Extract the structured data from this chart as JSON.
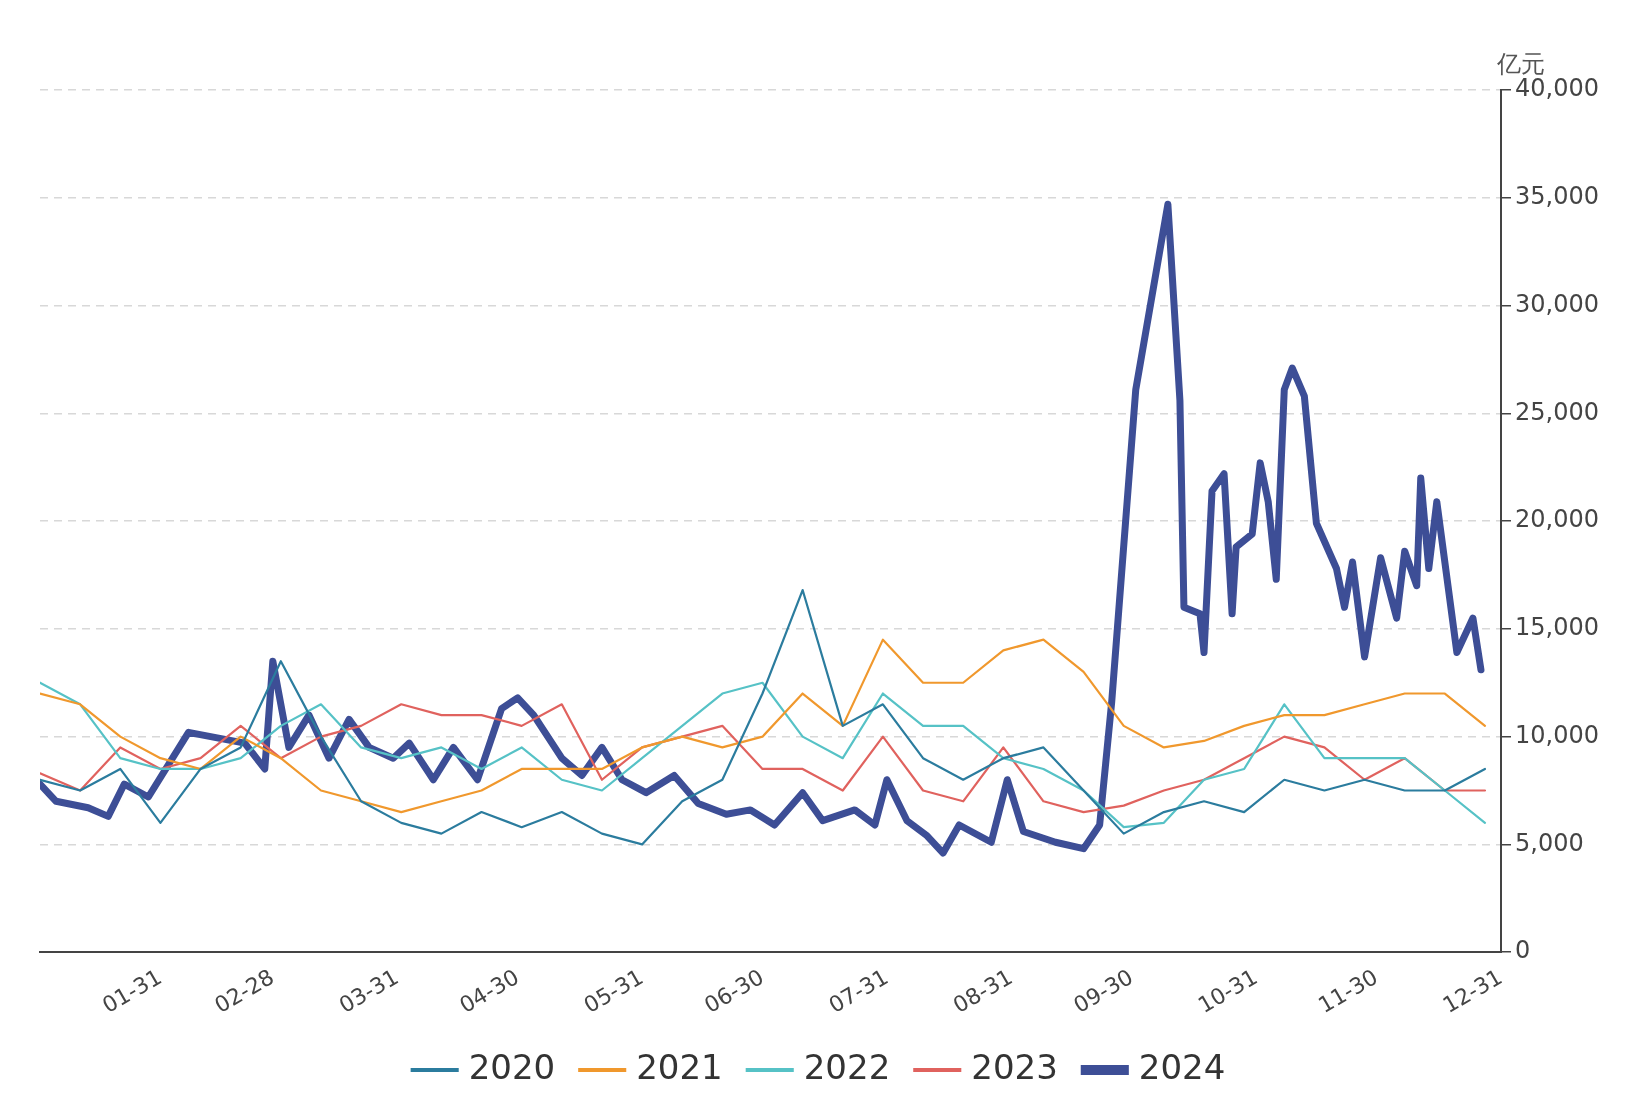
{
  "chart_data": {
    "type": "line",
    "ylabel": "亿元",
    "x": [
      "--01-01",
      "--01-11",
      "--01-21",
      "--01-31",
      "--02-10",
      "--02-20",
      "--03-02",
      "--03-12",
      "--03-22",
      "--04-01",
      "--04-11",
      "--04-21",
      "--05-01",
      "--05-11",
      "--05-21",
      "--05-31",
      "--06-10",
      "--06-20",
      "--06-30",
      "--07-10",
      "--07-20",
      "--07-30",
      "--08-09",
      "--08-19",
      "--08-29",
      "--09-08",
      "--09-18",
      "--09-28",
      "--10-08",
      "--10-18",
      "--10-28",
      "--11-07",
      "--11-17",
      "--11-27",
      "--12-07",
      "--12-17",
      "--12-27"
    ],
    "xlim": [
      "--01-01",
      "--12-31"
    ],
    "xticks": [
      {
        "value": "--01-31",
        "label": "01-31"
      },
      {
        "value": "--02-28",
        "label": "02-28"
      },
      {
        "value": "--03-31",
        "label": "03-31"
      },
      {
        "value": "--04-30",
        "label": "04-30"
      },
      {
        "value": "--05-31",
        "label": "05-31"
      },
      {
        "value": "--06-30",
        "label": "06-30"
      },
      {
        "value": "--07-31",
        "label": "07-31"
      },
      {
        "value": "--08-31",
        "label": "08-31"
      },
      {
        "value": "--09-30",
        "label": "09-30"
      },
      {
        "value": "--10-31",
        "label": "10-31"
      },
      {
        "value": "--11-30",
        "label": "11-30"
      },
      {
        "value": "--12-31",
        "label": "12-31"
      }
    ],
    "ylim": [
      0,
      40000
    ],
    "yticks": [
      0,
      {
        "value": 5000,
        "label": "5,000"
      },
      {
        "value": 10000,
        "label": "10,000"
      },
      {
        "value": 15000,
        "label": "15,000"
      },
      {
        "value": 20000,
        "label": "20,000"
      },
      {
        "value": 25000,
        "label": "25,000"
      },
      {
        "value": 30000,
        "label": "30,000"
      },
      {
        "value": 35000,
        "label": "35,000"
      },
      {
        "value": 40000,
        "label": "40,000"
      }
    ],
    "grid": "y",
    "legend": "bottom",
    "marker": "none",
    "line_style": "solid",
    "series": [
      {
        "name": "2020",
        "color": "#2b7c9e",
        "values": [
          8000,
          7500,
          8500,
          6000,
          8500,
          9500,
          13500,
          10000,
          7000,
          6000,
          5500,
          6500,
          5800,
          6500,
          5500,
          5000,
          7000,
          8000,
          12000,
          16800,
          10500,
          11500,
          9000,
          8000,
          9000,
          9500,
          7500,
          5500,
          6500,
          7000,
          6500,
          8000,
          7500,
          8000,
          7500,
          7500,
          8500
        ]
      },
      {
        "name": "2021",
        "color": "#f0982d",
        "values": [
          12000,
          11500,
          10000,
          9000,
          8500,
          10000,
          9000,
          7500,
          7000,
          6500,
          7000,
          7500,
          8500,
          8500,
          8500,
          9500,
          10000,
          9500,
          10000,
          12000,
          10500,
          14500,
          12500,
          12500,
          14000,
          14500,
          13000,
          10500,
          9500,
          9800,
          10500,
          11000,
          11000,
          11500,
          12000,
          12000,
          10500
        ]
      },
      {
        "name": "2022",
        "color": "#56c2c6",
        "values": [
          12500,
          11500,
          9000,
          8500,
          8500,
          9000,
          10500,
          11500,
          9500,
          9000,
          9500,
          8500,
          9500,
          8000,
          7500,
          9000,
          10500,
          12000,
          12500,
          10000,
          9000,
          12000,
          10500,
          10500,
          9000,
          8500,
          7500,
          5800,
          6000,
          8000,
          8500,
          11500,
          9000,
          9000,
          9000,
          7500,
          6000
        ]
      },
      {
        "name": "2023",
        "color": "#e0625e",
        "values": [
          8300,
          7500,
          9500,
          8500,
          9000,
          10500,
          9000,
          10000,
          10500,
          11500,
          11000,
          11000,
          10500,
          11500,
          8000,
          9500,
          10000,
          10500,
          8500,
          8500,
          7500,
          10000,
          7500,
          7000,
          9500,
          7000,
          6500,
          6800,
          7500,
          8000,
          9000,
          10000,
          9500,
          8000,
          9000,
          7500,
          7500
        ]
      },
      {
        "name": "2024",
        "color": "#3d4e96",
        "x": [
          "--01-01",
          "--01-05",
          "--01-13",
          "--01-18",
          "--01-22",
          "--01-28",
          "--02-07",
          "--02-21",
          "--02-26",
          "--02-28",
          "--03-04",
          "--03-09",
          "--03-14",
          "--03-19",
          "--03-24",
          "--03-30",
          "--04-03",
          "--04-09",
          "--04-14",
          "--04-20",
          "--04-26",
          "--04-30",
          "--05-04",
          "--05-11",
          "--05-16",
          "--05-21",
          "--05-26",
          "--06-01",
          "--06-08",
          "--06-14",
          "--06-21",
          "--06-27",
          "--07-03",
          "--07-10",
          "--07-15",
          "--07-23",
          "--07-28",
          "--07-31",
          "--08-05",
          "--08-10",
          "--08-14",
          "--08-18",
          "--08-26",
          "--08-30",
          "--09-03",
          "--09-11",
          "--09-18",
          "--09-22",
          "--09-25",
          "--10-01",
          "--10-09",
          "--10-12",
          "--10-13",
          "--10-17",
          "--10-18",
          "--10-20",
          "--10-23",
          "--10-25",
          "--10-26",
          "--10-30",
          "--11-01",
          "--11-03",
          "--11-05",
          "--11-07",
          "--11-09",
          "--11-12",
          "--11-15",
          "--11-20",
          "--11-22",
          "--11-24",
          "--11-27",
          "--12-01",
          "--12-05",
          "--12-07",
          "--12-10",
          "--12-11",
          "--12-13",
          "--12-15",
          "--12-20",
          "--12-24",
          "--12-26"
        ],
        "values": [
          7800,
          7000,
          6700,
          6300,
          7800,
          7200,
          10200,
          9700,
          8500,
          13500,
          9500,
          11000,
          9000,
          10800,
          9500,
          9000,
          9700,
          8000,
          9500,
          8000,
          11300,
          11800,
          11000,
          9000,
          8200,
          9500,
          8000,
          7400,
          8200,
          6900,
          6400,
          6600,
          5900,
          7400,
          6100,
          6600,
          5900,
          8000,
          6100,
          5400,
          4600,
          5900,
          5100,
          8000,
          5600,
          5100,
          4800,
          5900,
          11600,
          26100,
          34700,
          25600,
          16000,
          15700,
          13900,
          21400,
          22200,
          15700,
          18800,
          19400,
          22700,
          20900,
          17300,
          26100,
          27100,
          25800,
          19900,
          17800,
          16000,
          18100,
          13700,
          18300,
          15500,
          18600,
          17000,
          22000,
          17800,
          20900,
          13900,
          15500,
          13100
        ]
      }
    ]
  }
}
